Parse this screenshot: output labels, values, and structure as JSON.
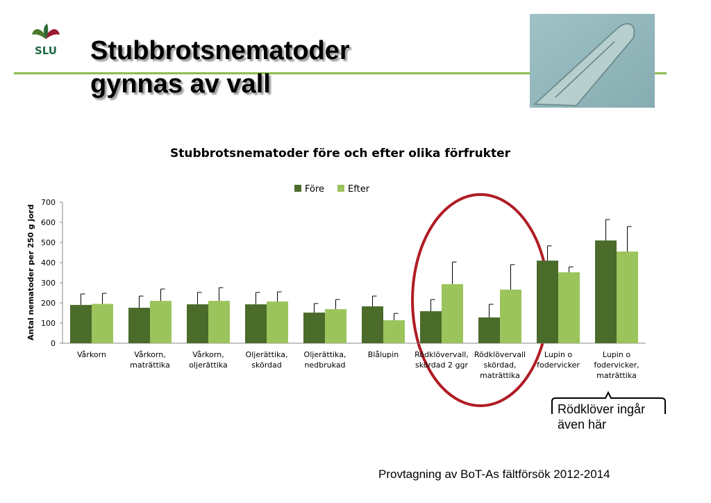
{
  "slide": {
    "logo_text": "SLU",
    "title_line1": "Stubbrotsnematoder",
    "title_line2": "gynnas av vall",
    "annotation": "Rödklöver ingår\näven här",
    "footer": "Provtagning av BoT-As fältförsök 2012-2014"
  },
  "chart_data": {
    "type": "bar",
    "title": "Stubbrotsnematoder före och efter olika förfrukter",
    "y_label": "Antal nematoder per 250 g jord",
    "categories": [
      "Vårkorn",
      "Vårkorn,\nmaträttika",
      "Vårkorn,\noljerättika",
      "Oljerättika,\nskördad",
      "Oljerättika,\nnedbrukad",
      "Blålupin",
      "Rödklövervall,\nskördad 2 ggr",
      "Rödklövervall\nskördad,\nmaträttika",
      "Lupin o\nfodervicker",
      "Lupin o\nfodervicker,\nmaträttika"
    ],
    "series": [
      {
        "name": "Före",
        "color": "#4b6b2b",
        "values": [
          190,
          176,
          193,
          193,
          152,
          183,
          159,
          128,
          410,
          510
        ],
        "errors": [
          55,
          58,
          59,
          59,
          45,
          51,
          58,
          65,
          73,
          104
        ]
      },
      {
        "name": "Efter",
        "color": "#9bc45c",
        "values": [
          195,
          210,
          210,
          207,
          169,
          114,
          293,
          266,
          352,
          455
        ],
        "errors": [
          53,
          59,
          66,
          48,
          48,
          34,
          110,
          124,
          27,
          124
        ]
      }
    ],
    "ylim": [
      0,
      700
    ],
    "yticks": [
      0,
      100,
      200,
      300,
      400,
      500,
      600,
      700
    ],
    "legend": "top"
  }
}
